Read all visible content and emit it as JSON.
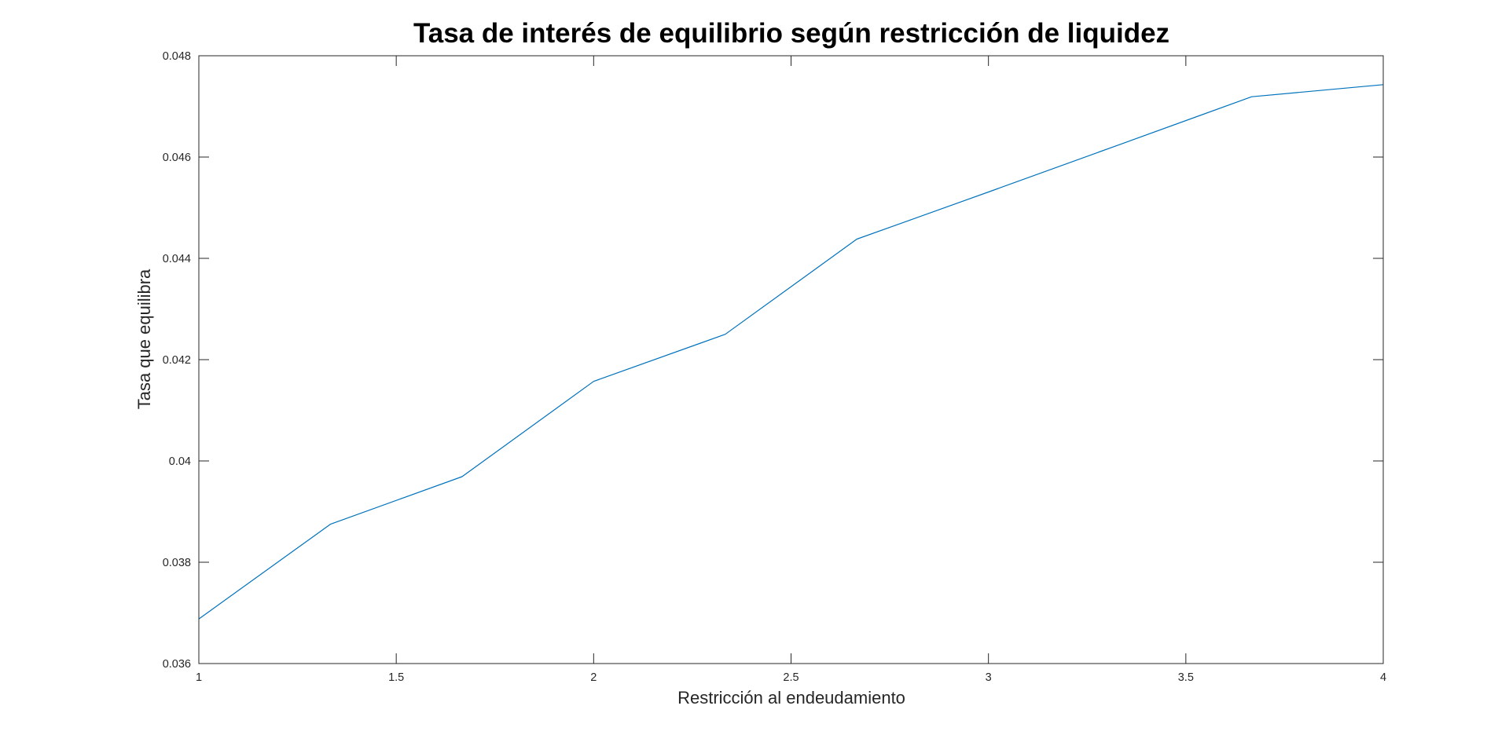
{
  "chart_data": {
    "type": "line",
    "title": "Tasa de interés de equilibrio según restricción de liquidez",
    "xlabel": "Restricción al endeudamiento",
    "ylabel": "Tasa que equilibra",
    "xlim": [
      1,
      4
    ],
    "ylim": [
      0.036,
      0.048
    ],
    "xticks": [
      1,
      1.5,
      2,
      2.5,
      3,
      3.5,
      4
    ],
    "xtick_labels": [
      "1",
      "1.5",
      "2",
      "2.5",
      "3",
      "3.5",
      "4"
    ],
    "yticks": [
      0.036,
      0.038,
      0.04,
      0.042,
      0.044,
      0.046,
      0.048
    ],
    "ytick_labels": [
      "0.036",
      "0.038",
      "0.04",
      "0.042",
      "0.044",
      "0.046",
      "0.048"
    ],
    "grid": false,
    "legend": "none",
    "series": [
      {
        "color": "#0072BD",
        "x": [
          1,
          1.3333,
          1.6667,
          2,
          2.3333,
          2.6667,
          3,
          3.3333,
          3.6667,
          4
        ],
        "y": [
          0.03688,
          0.03875,
          0.03969,
          0.04157,
          0.0425,
          0.04438,
          0.04531,
          0.04625,
          0.04719,
          0.04743
        ]
      }
    ]
  }
}
